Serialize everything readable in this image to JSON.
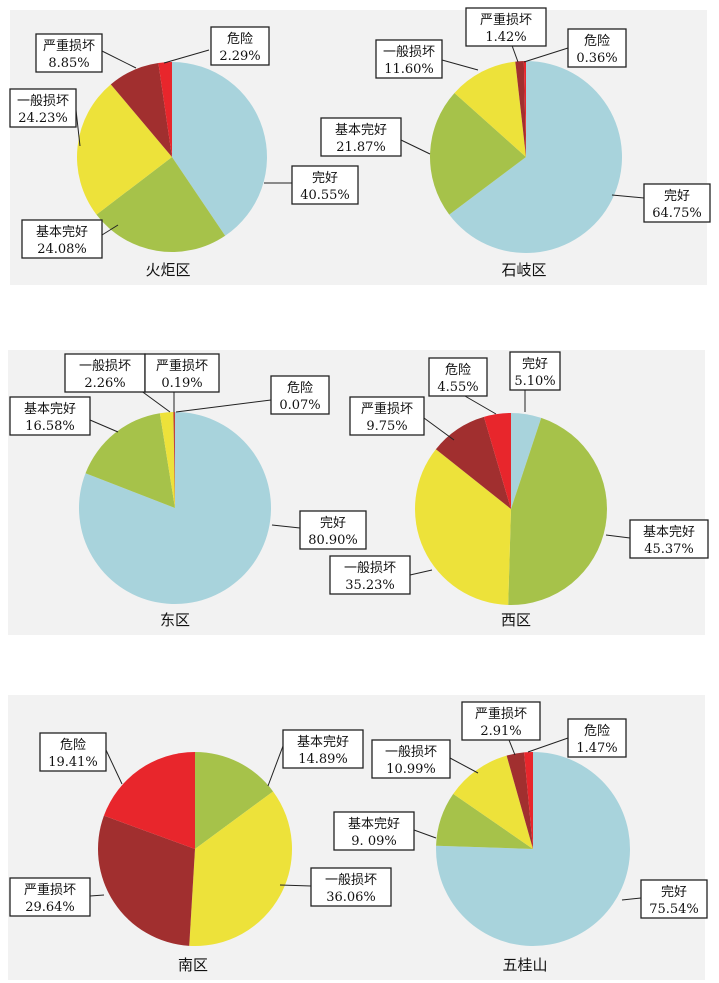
{
  "colors": {
    "完好": "#a8d3dc",
    "基本完好": "#a6c24a",
    "一般损坏": "#ede23a",
    "严重损坏": "#a12f2f",
    "危险": "#e8262c"
  },
  "chart_data": [
    {
      "type": "pie",
      "title": "火炬区",
      "slices": [
        {
          "label": "完好",
          "value": 40.55,
          "text": "40.55%"
        },
        {
          "label": "基本完好",
          "value": 24.08,
          "text": "24.08%"
        },
        {
          "label": "一般损坏",
          "value": 24.23,
          "text": "24.23%"
        },
        {
          "label": "严重损坏",
          "value": 8.85,
          "text": "8.85%"
        },
        {
          "label": "危险",
          "value": 2.29,
          "text": "2.29%"
        }
      ]
    },
    {
      "type": "pie",
      "title": "石岐区",
      "slices": [
        {
          "label": "完好",
          "value": 64.75,
          "text": "64.75%"
        },
        {
          "label": "基本完好",
          "value": 21.87,
          "text": "21.87%"
        },
        {
          "label": "一般损坏",
          "value": 11.6,
          "text": "11.60%"
        },
        {
          "label": "严重损坏",
          "value": 1.42,
          "text": "1.42%"
        },
        {
          "label": "危险",
          "value": 0.36,
          "text": "0.36%"
        }
      ]
    },
    {
      "type": "pie",
      "title": "东区",
      "slices": [
        {
          "label": "完好",
          "value": 80.9,
          "text": "80.90%"
        },
        {
          "label": "基本完好",
          "value": 16.58,
          "text": "16.58%"
        },
        {
          "label": "一般损坏",
          "value": 2.26,
          "text": "2.26%"
        },
        {
          "label": "严重损坏",
          "value": 0.19,
          "text": "0.19%"
        },
        {
          "label": "危险",
          "value": 0.07,
          "text": "0.07%"
        }
      ]
    },
    {
      "type": "pie",
      "title": "西区",
      "slices": [
        {
          "label": "完好",
          "value": 5.1,
          "text": "5.10%"
        },
        {
          "label": "基本完好",
          "value": 45.37,
          "text": "45.37%"
        },
        {
          "label": "一般损坏",
          "value": 35.23,
          "text": "35.23%"
        },
        {
          "label": "严重损坏",
          "value": 9.75,
          "text": "9.75%"
        },
        {
          "label": "危险",
          "value": 4.55,
          "text": "4.55%"
        }
      ]
    },
    {
      "type": "pie",
      "title": "南区",
      "slices": [
        {
          "label": "基本完好",
          "value": 14.89,
          "text": "14.89%"
        },
        {
          "label": "一般损坏",
          "value": 36.06,
          "text": "36.06%"
        },
        {
          "label": "严重损坏",
          "value": 29.64,
          "text": "29.64%"
        },
        {
          "label": "危险",
          "value": 19.41,
          "text": "19.41%"
        }
      ]
    },
    {
      "type": "pie",
      "title": "五桂山",
      "slices": [
        {
          "label": "完好",
          "value": 75.54,
          "text": "75.54%"
        },
        {
          "label": "基本完好",
          "value": 9.09,
          "text": "9. 09%"
        },
        {
          "label": "一般损坏",
          "value": 10.99,
          "text": "10.99%"
        },
        {
          "label": "严重损坏",
          "value": 2.91,
          "text": "2.91%"
        },
        {
          "label": "危险",
          "value": 1.47,
          "text": "1.47%"
        }
      ]
    }
  ]
}
